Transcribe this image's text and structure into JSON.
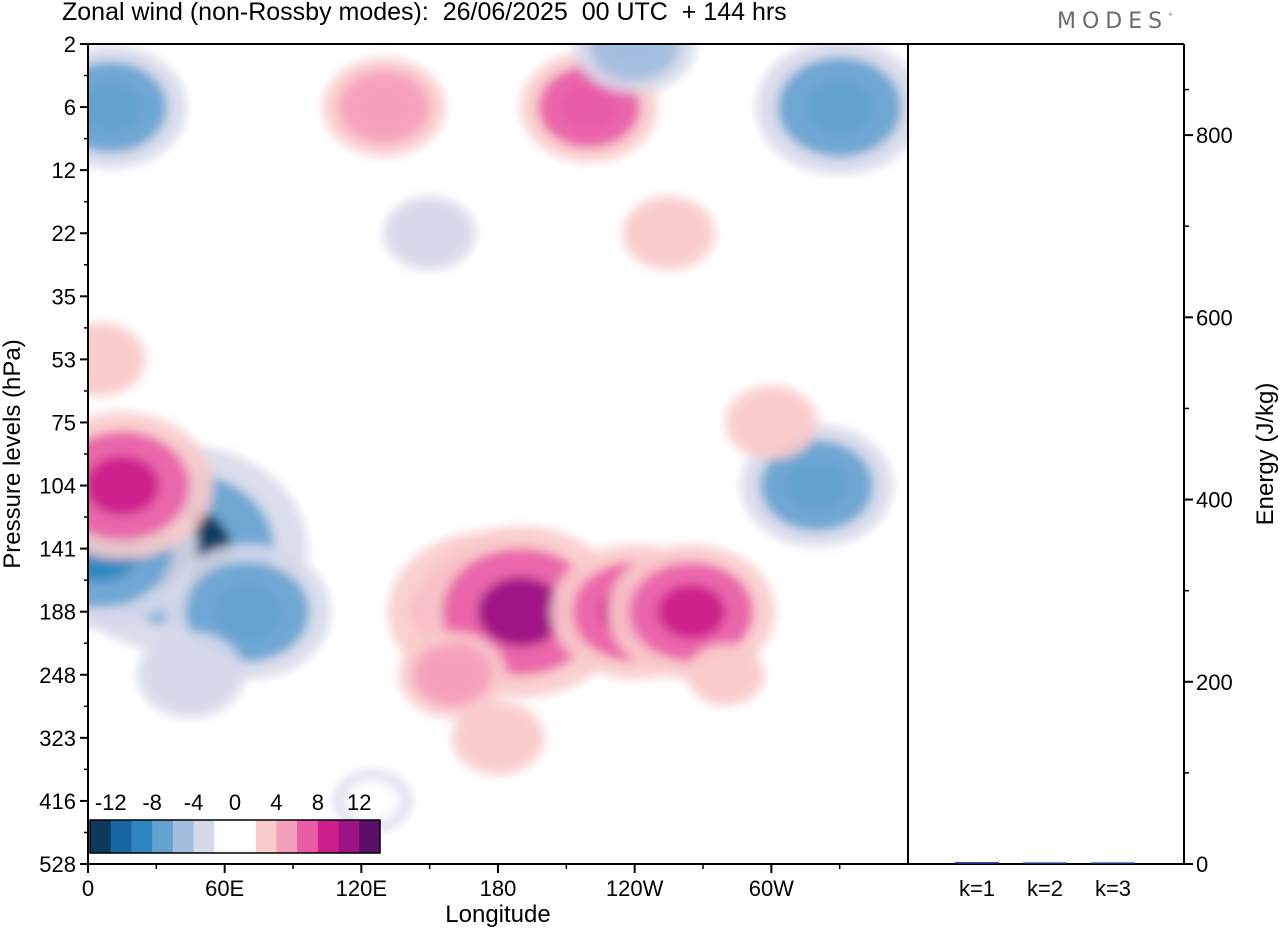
{
  "header": {
    "title": "Zonal wind (non-Rossby modes):  26/06/2025  00 UTC  + 144 hrs",
    "brand": "MODES",
    "brand_mark": "°"
  },
  "chart_data": [
    {
      "type": "heatmap",
      "title": "Zonal wind (non-Rossby modes):  26/06/2025  00 UTC  + 144 hrs",
      "xlabel": "Longitude",
      "ylabel": "Pressure levels (hPa)",
      "x_ticks": [
        "0",
        "60E",
        "120E",
        "180",
        "120W",
        "60W"
      ],
      "x_tick_degrees": [
        0,
        60,
        120,
        180,
        240,
        300
      ],
      "xlim": [
        0,
        360
      ],
      "y_ticks": [
        "2",
        "6",
        "12",
        "22",
        "35",
        "53",
        "75",
        "104",
        "141",
        "188",
        "248",
        "323",
        "416",
        "528"
      ],
      "y_scale": "model levels (non-uniform), top = 2 hPa",
      "grid": false,
      "colorbar": {
        "placement": "bottom-left inset",
        "labels": [
          "-12",
          "-8",
          "-4",
          "0",
          "4",
          "8",
          "12"
        ],
        "label_values": [
          -12,
          -8,
          -4,
          0,
          4,
          8,
          12
        ],
        "bins": [
          -14,
          -12,
          -10,
          -8,
          -6,
          -4,
          -2,
          0,
          2,
          4,
          6,
          8,
          10,
          12,
          14
        ],
        "colors": [
          "#0b3a5c",
          "#1866a0",
          "#2d86c0",
          "#64a2d0",
          "#a2bedf",
          "#d6d9ea",
          "#ffffff",
          "#ffffff",
          "#f9cbcb",
          "#f59fba",
          "#e95ca6",
          "#cc1f8b",
          "#9c1484",
          "#5c0e6b"
        ]
      },
      "features": [
        {
          "lon": 40,
          "level": "141",
          "value": -14
        },
        {
          "lon": 5,
          "level": "141",
          "value": -10
        },
        {
          "lon": 70,
          "level": "188",
          "value": -8
        },
        {
          "lon": 45,
          "level": "248",
          "value": -4
        },
        {
          "lon": 125,
          "level": "416",
          "value": -2
        },
        {
          "lon": 15,
          "level": "104",
          "value": 9
        },
        {
          "lon": 5,
          "level": "53",
          "value": 3
        },
        {
          "lon": 175,
          "level": "188",
          "value": 10
        },
        {
          "lon": 190,
          "level": "188",
          "value": 11
        },
        {
          "lon": 160,
          "level": "248",
          "value": 4
        },
        {
          "lon": 180,
          "level": "323",
          "value": 3
        },
        {
          "lon": 240,
          "level": "188",
          "value": 8
        },
        {
          "lon": 265,
          "level": "188",
          "value": 8
        },
        {
          "lon": 280,
          "level": "248",
          "value": 2
        },
        {
          "lon": 320,
          "level": "104",
          "value": -7
        },
        {
          "lon": 300,
          "level": "75",
          "value": 3
        },
        {
          "lon": 255,
          "level": "22",
          "value": 3
        },
        {
          "lon": 130,
          "level": "6",
          "value": 5
        },
        {
          "lon": 220,
          "level": "6",
          "value": 6
        },
        {
          "lon": 330,
          "level": "6",
          "value": -8
        },
        {
          "lon": 240,
          "level": "2",
          "value": -5
        },
        {
          "lon": 10,
          "level": "6",
          "value": -7
        },
        {
          "lon": 150,
          "level": "22",
          "value": -3
        }
      ]
    },
    {
      "type": "bar",
      "ylabel": "Energy (J/kg)",
      "categories": [
        "k=1",
        "k=2",
        "k=3"
      ],
      "values": [
        2,
        1,
        0.5
      ],
      "ylim": [
        0,
        900
      ],
      "y_ticks": [
        "0",
        "200",
        "400",
        "600",
        "800"
      ],
      "bar_color": "#1a237e"
    }
  ]
}
